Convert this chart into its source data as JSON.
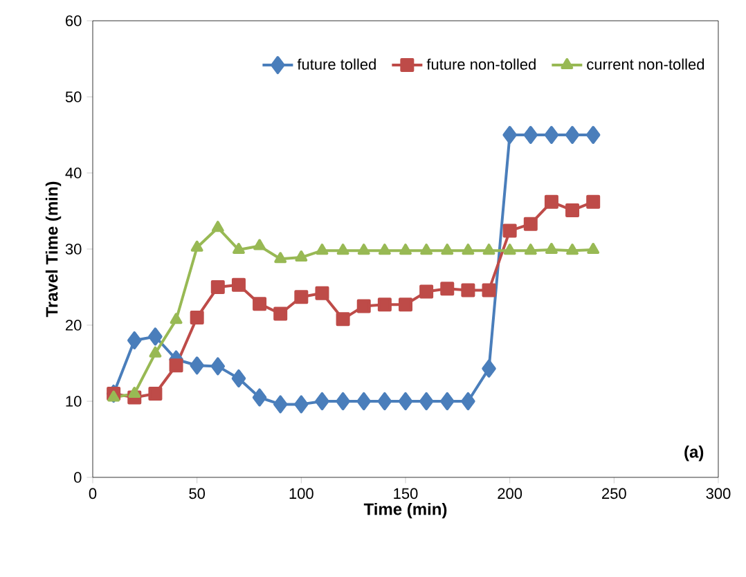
{
  "chart_data": {
    "type": "line",
    "xlabel": "Time (min)",
    "ylabel": "Travel Time (min)",
    "x": [
      10,
      20,
      30,
      40,
      50,
      60,
      70,
      80,
      90,
      100,
      110,
      120,
      130,
      140,
      150,
      160,
      170,
      180,
      190,
      200,
      210,
      220,
      230,
      240
    ],
    "series": [
      {
        "name": "future tolled",
        "color": "#4a7ebb",
        "marker": "diamond",
        "values": [
          11,
          18,
          18.5,
          15.5,
          14.7,
          14.6,
          13,
          10.5,
          9.6,
          9.6,
          10,
          10,
          10,
          10,
          10,
          10,
          10,
          10,
          14.3,
          45,
          45,
          45,
          45,
          45
        ]
      },
      {
        "name": "future non-tolled",
        "color": "#be4b48",
        "marker": "square",
        "values": [
          11,
          10.5,
          11,
          14.7,
          21,
          25,
          25.3,
          22.8,
          21.5,
          23.7,
          24.2,
          20.8,
          22.5,
          22.7,
          22.7,
          24.4,
          24.8,
          24.6,
          24.6,
          32.4,
          33.3,
          36.2,
          35.1,
          36.2
        ]
      },
      {
        "name": "current non-tolled",
        "color": "#98b954",
        "marker": "triangle",
        "values": [
          10.5,
          11,
          16.3,
          20.7,
          30.2,
          32.8,
          29.9,
          30.4,
          28.7,
          28.9,
          29.8,
          29.8,
          29.8,
          29.8,
          29.8,
          29.8,
          29.8,
          29.8,
          29.8,
          29.8,
          29.8,
          29.9,
          29.8,
          29.9
        ]
      }
    ],
    "xlim": [
      0,
      300
    ],
    "xticks": [
      0,
      50,
      100,
      150,
      200,
      250,
      300
    ],
    "ylim": [
      0,
      60
    ],
    "yticks": [
      0,
      10,
      20,
      30,
      40,
      50,
      60
    ],
    "grid": false,
    "legend": "top right",
    "line_style": "solid",
    "annotations": [
      "(a)"
    ]
  }
}
